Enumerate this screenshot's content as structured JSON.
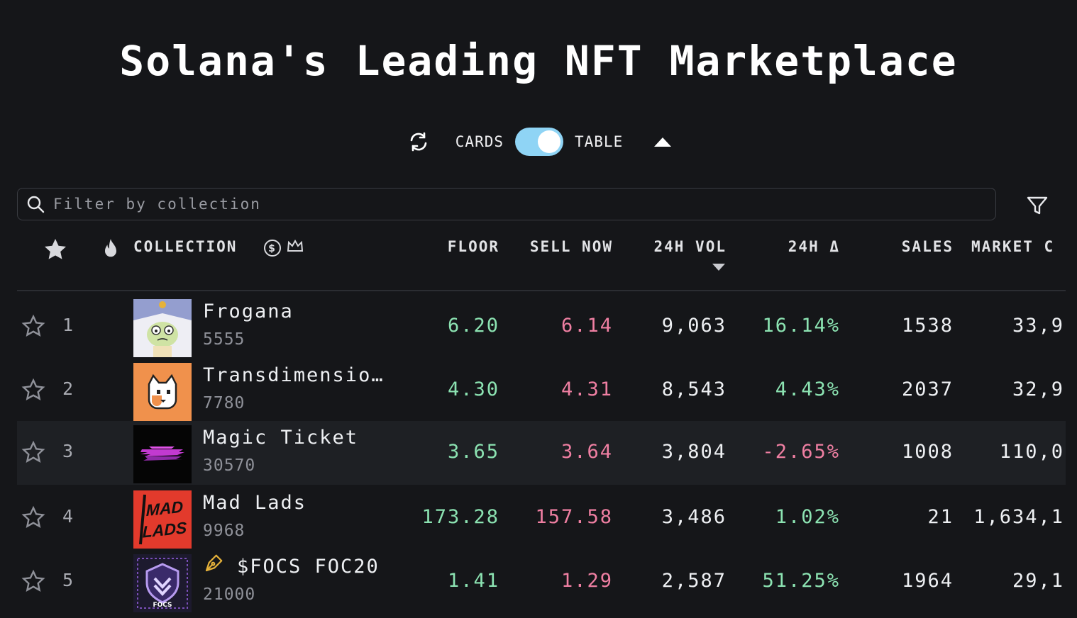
{
  "page": {
    "title": "Solana's Leading NFT Marketplace"
  },
  "view_toggle": {
    "cards_label": "CARDS",
    "table_label": "TABLE",
    "selected": "TABLE"
  },
  "search": {
    "placeholder": "Filter by collection",
    "value": ""
  },
  "columns": {
    "collection": "COLLECTION",
    "floor": "FLOOR",
    "sell_now": "SELL NOW",
    "vol_24h": "24H VOL",
    "change_24h": "24H Δ",
    "sales": "SALES",
    "market_cap": "MARKET C"
  },
  "icons": [
    "refresh-icon",
    "toggle-switch",
    "caret-up-icon",
    "search-icon",
    "filter-icon",
    "star-icon",
    "flame-icon",
    "dollar-coin-icon",
    "crown-icon",
    "star-outline-icon",
    "pen-icon"
  ],
  "colors": {
    "background": "#151619",
    "positive": "#8ce3b2",
    "negative": "#ef7fa2",
    "toggle": "#8fd4f5"
  },
  "rows": [
    {
      "rank": "1",
      "name": "Frogana",
      "supply": "5555",
      "floor": "6.20",
      "sell_now": "6.14",
      "vol": "9,063",
      "change": "16.14%",
      "sales": "1538",
      "mcap": "33,9"
    },
    {
      "rank": "2",
      "name": "Transdimensio…",
      "supply": "7780",
      "floor": "4.30",
      "sell_now": "4.31",
      "vol": "8,543",
      "change": "4.43%",
      "sales": "2037",
      "mcap": "32,9"
    },
    {
      "rank": "3",
      "name": "Magic Ticket",
      "supply": "30570",
      "floor": "3.65",
      "sell_now": "3.64",
      "vol": "3,804",
      "change": "-2.65%",
      "sales": "1008",
      "mcap": "110,0"
    },
    {
      "rank": "4",
      "name": "Mad Lads",
      "supply": "9968",
      "floor": "173.28",
      "sell_now": "157.58",
      "vol": "3,486",
      "change": "1.02%",
      "sales": "21",
      "mcap": "1,634,1"
    },
    {
      "rank": "5",
      "name": "$FOCS FOC20",
      "supply": "21000",
      "floor": "1.41",
      "sell_now": "1.29",
      "vol": "2,587",
      "change": "51.25%",
      "sales": "1964",
      "mcap": "29,1"
    }
  ],
  "thumb_text": {
    "mad_lads": "MAD LADS",
    "focs": "FOCS"
  }
}
